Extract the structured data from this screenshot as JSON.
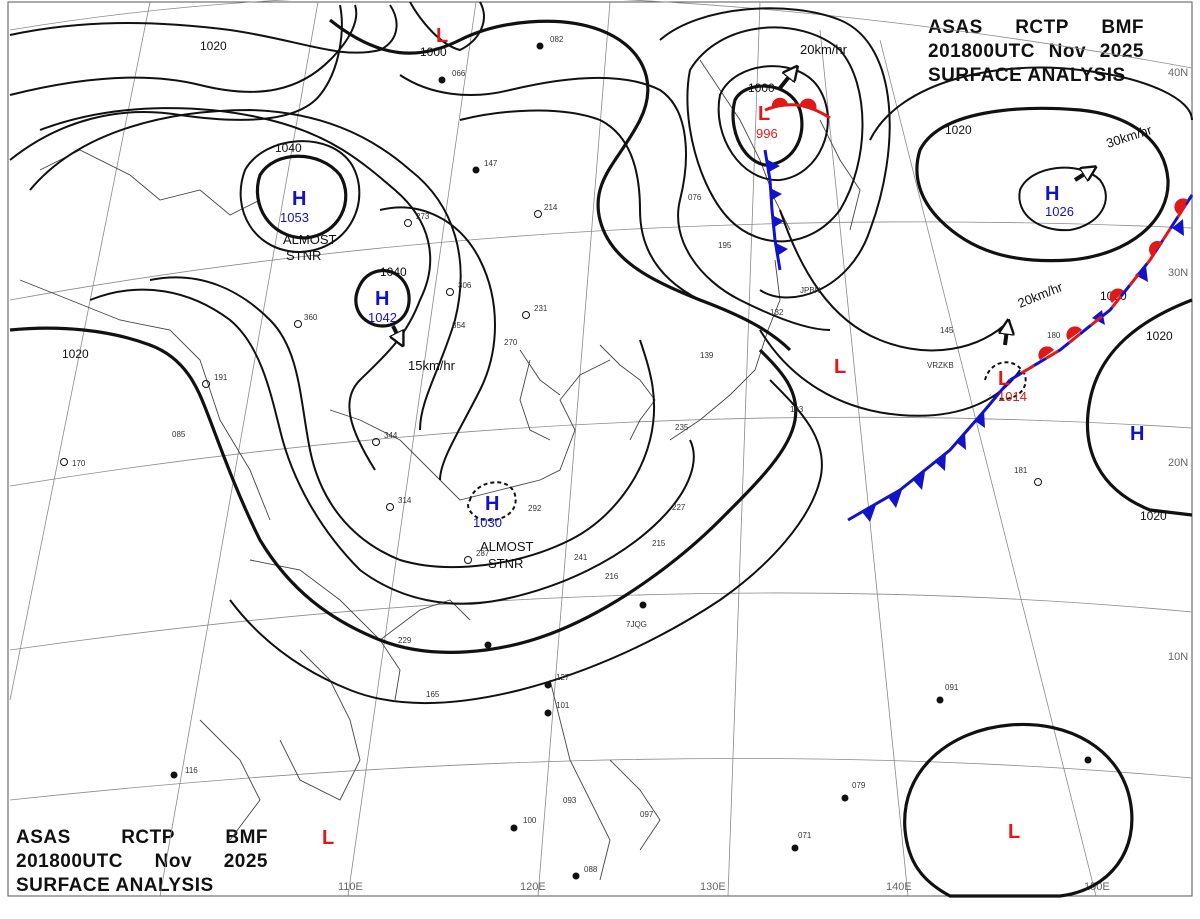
{
  "header": {
    "agency": "ASAS",
    "station": "RCTP",
    "suffix": "BMF",
    "time": "201800UTC",
    "month": "Nov",
    "year": "2025",
    "product": "SURFACE ANALYSIS"
  },
  "grid_labels": {
    "lat_40": "40N",
    "lat_30": "30N",
    "lat_20": "20N",
    "lat_10": "10N",
    "lon_110": "110E",
    "lon_120": "120E",
    "lon_130": "130E",
    "lon_140": "140E",
    "lon_150": "150E"
  },
  "isobar_labels": [
    "1020",
    "1000",
    "1040",
    "1040",
    "1020",
    "1000",
    "1020",
    "1020",
    "1020",
    "1020"
  ],
  "centers": [
    {
      "type": "H",
      "value": "1053",
      "color": "#1212c8",
      "note1": "ALMOST",
      "note2": "STNR"
    },
    {
      "type": "H",
      "value": "1042",
      "color": "#1212c8"
    },
    {
      "type": "H",
      "value": "1030",
      "color": "#1212c8",
      "note1": "ALMOST",
      "note2": "STNR"
    },
    {
      "type": "H",
      "value": "1026",
      "color": "#1212c8"
    },
    {
      "type": "H",
      "value": "",
      "color": "#1212c8"
    },
    {
      "type": "L",
      "value": "996",
      "color": "#e01818"
    },
    {
      "type": "L",
      "value": "1014",
      "color": "#e01818"
    },
    {
      "type": "L",
      "value": "",
      "color": "#e01818"
    },
    {
      "type": "L",
      "value": "",
      "color": "#e01818"
    },
    {
      "type": "L",
      "value": "",
      "color": "#e01818"
    },
    {
      "type": "L",
      "value": "",
      "color": "#e01818"
    }
  ],
  "motions": [
    {
      "speed": "20km/hr"
    },
    {
      "speed": "30km/hr"
    },
    {
      "speed": "20km/hr"
    },
    {
      "speed": "15km/hr"
    }
  ],
  "stations": [
    {
      "text": "082"
    },
    {
      "text": "066"
    },
    {
      "text": "147"
    },
    {
      "text": "214"
    },
    {
      "text": "273"
    },
    {
      "text": "306"
    },
    {
      "text": "231"
    },
    {
      "text": "270"
    },
    {
      "text": "360"
    },
    {
      "text": "354"
    },
    {
      "text": "191"
    },
    {
      "text": "085"
    },
    {
      "text": "170"
    },
    {
      "text": "344"
    },
    {
      "text": "314"
    },
    {
      "text": "292"
    },
    {
      "text": "287"
    },
    {
      "text": "241"
    },
    {
      "text": "216"
    },
    {
      "text": "227"
    },
    {
      "text": "215"
    },
    {
      "text": "229"
    },
    {
      "text": "165"
    },
    {
      "text": "127"
    },
    {
      "text": "101"
    },
    {
      "text": "116"
    },
    {
      "text": "100"
    },
    {
      "text": "093"
    },
    {
      "text": "097"
    },
    {
      "text": "088"
    },
    {
      "text": "145"
    },
    {
      "text": "193"
    },
    {
      "text": "181"
    },
    {
      "text": "091"
    },
    {
      "text": "079"
    },
    {
      "text": "071"
    },
    {
      "text": "076"
    },
    {
      "text": "195"
    },
    {
      "text": "139"
    },
    {
      "text": "132"
    },
    {
      "text": "235"
    },
    {
      "text": "180"
    },
    {
      "text": "JPBN"
    },
    {
      "text": "VRZKB"
    },
    {
      "text": "7JQG"
    }
  ],
  "colors": {
    "high": "#1212c8",
    "low": "#e01818",
    "cold_front": "#1212c8",
    "warm_front": "#e01818",
    "isobar": "#111111"
  }
}
